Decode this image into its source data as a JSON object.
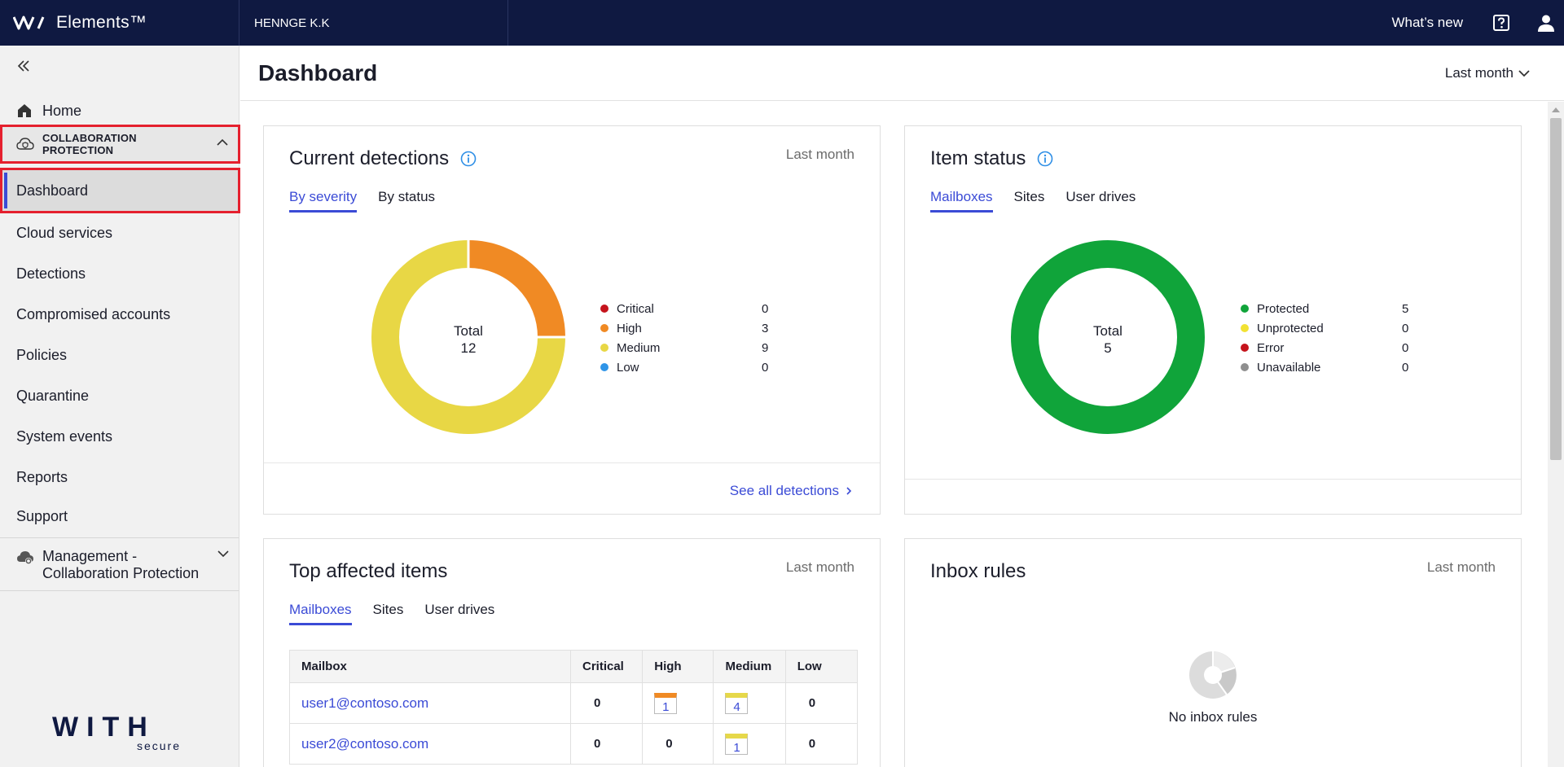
{
  "topbar": {
    "brand": "Elements™",
    "tenant": "HENNGE K.K",
    "whats_new": "What’s new"
  },
  "sidebar": {
    "home": "Home",
    "group_label": "COLLABORATION PROTECTION",
    "dashboard": "Dashboard",
    "items": [
      "Cloud services",
      "Detections",
      "Compromised accounts",
      "Policies",
      "Quarantine",
      "System events",
      "Reports",
      "Support"
    ],
    "management": "Management - Collaboration Protection",
    "logo_main": "WITH",
    "logo_sub": "secure"
  },
  "header": {
    "title": "Dashboard",
    "period": "Last month"
  },
  "detections": {
    "title": "Current detections",
    "period": "Last month",
    "tabs": [
      "By severity",
      "By status"
    ],
    "total_label": "Total",
    "total": "12",
    "see_all": "See all detections",
    "legend": [
      {
        "label": "Critical",
        "value": "0",
        "color": "#c5141c"
      },
      {
        "label": "High",
        "value": "3",
        "color": "#f08a24"
      },
      {
        "label": "Medium",
        "value": "9",
        "color": "#e8d745"
      },
      {
        "label": "Low",
        "value": "0",
        "color": "#2f95e8"
      }
    ]
  },
  "item_status": {
    "title": "Item status",
    "tabs": [
      "Mailboxes",
      "Sites",
      "User drives"
    ],
    "total_label": "Total",
    "total": "5",
    "legend": [
      {
        "label": "Protected",
        "value": "5",
        "color": "#10a43a"
      },
      {
        "label": "Unprotected",
        "value": "0",
        "color": "#f2e233"
      },
      {
        "label": "Error",
        "value": "0",
        "color": "#c5141c"
      },
      {
        "label": "Unavailable",
        "value": "0",
        "color": "#8f8f8f"
      }
    ]
  },
  "top_affected": {
    "title": "Top affected items",
    "period": "Last month",
    "tabs": [
      "Mailboxes",
      "Sites",
      "User drives"
    ],
    "columns": [
      "Mailbox",
      "Critical",
      "High",
      "Medium",
      "Low"
    ],
    "rows": [
      {
        "mailbox": "user1@contoso.com",
        "critical": "0",
        "high": "1",
        "medium": "4",
        "low": "0"
      },
      {
        "mailbox": "user2@contoso.com",
        "critical": "0",
        "high": "0",
        "medium": "1",
        "low": "0"
      }
    ]
  },
  "inbox_rules": {
    "title": "Inbox rules",
    "period": "Last month",
    "empty_text": "No inbox rules"
  },
  "chart_data": [
    {
      "type": "pie",
      "categories": [
        "Critical",
        "High",
        "Medium",
        "Low"
      ],
      "values": [
        0,
        3,
        9,
        0
      ],
      "title": "Current detections"
    },
    {
      "type": "pie",
      "categories": [
        "Protected",
        "Unprotected",
        "Error",
        "Unavailable"
      ],
      "values": [
        5,
        0,
        0,
        0
      ],
      "title": "Item status"
    }
  ]
}
